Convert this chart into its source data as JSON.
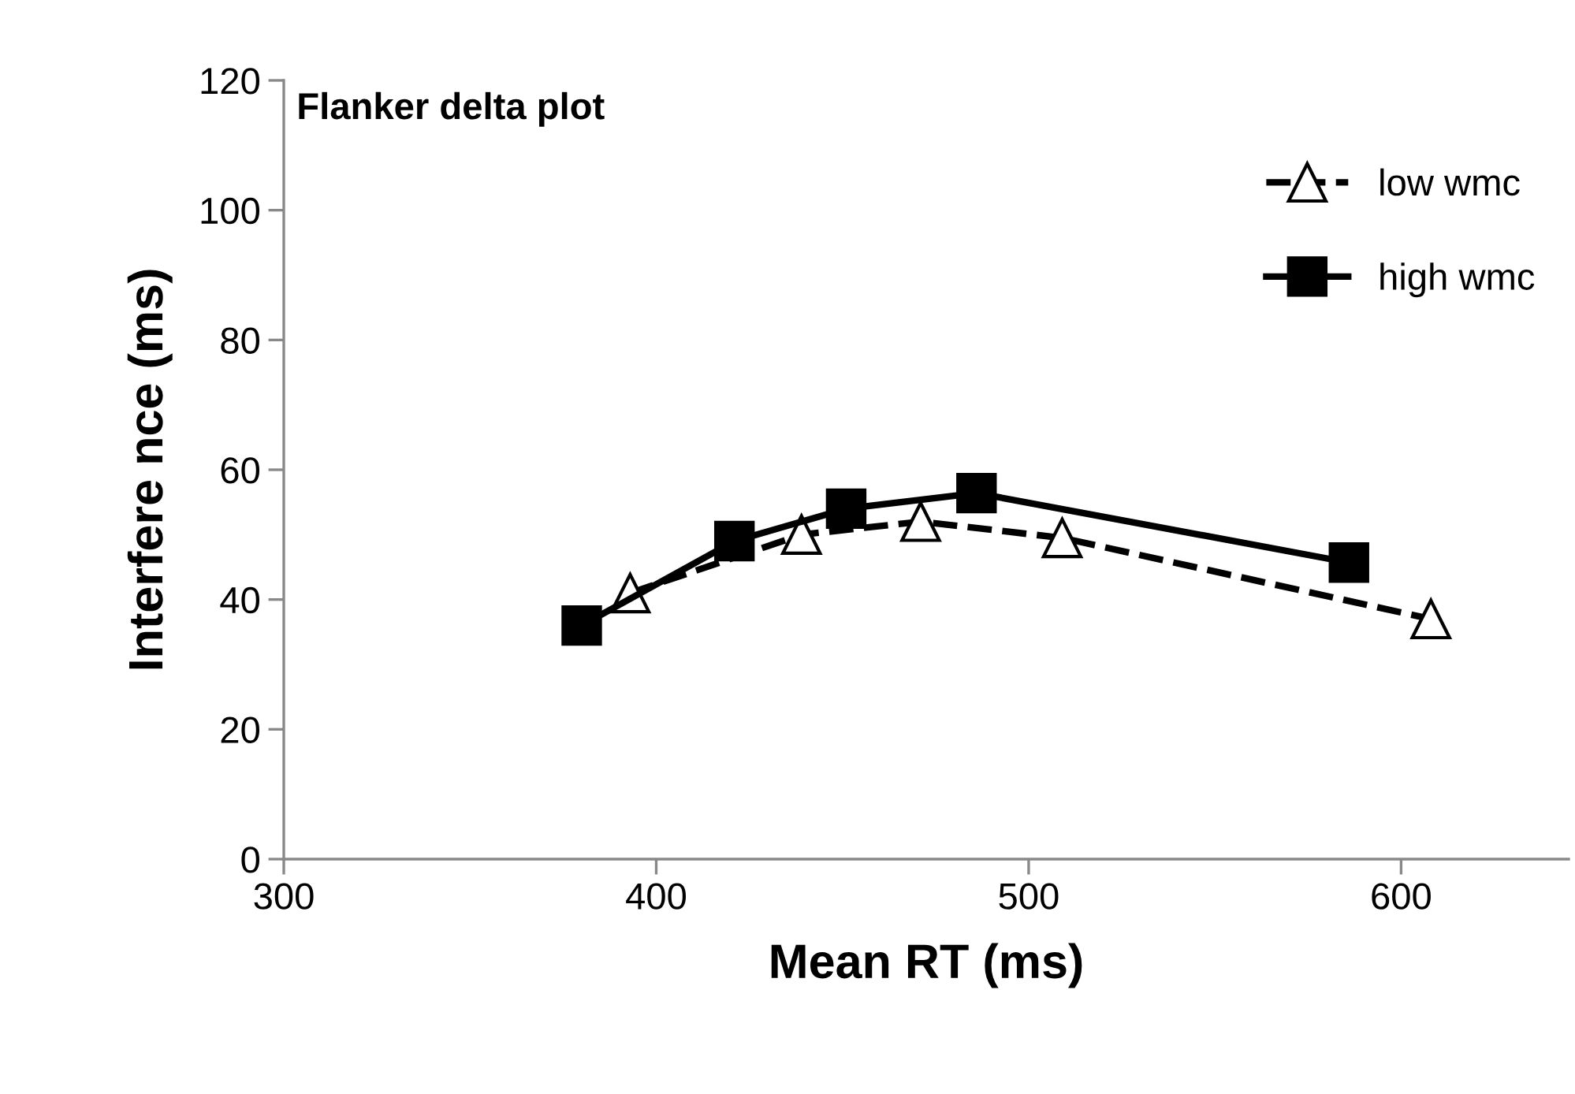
{
  "chart_data": {
    "type": "line",
    "title": "Flanker delta plot",
    "xlabel": "Mean RT (ms)",
    "ylabel": "Interfere nce (ms)",
    "xlim": [
      300,
      645
    ],
    "xticks": [
      300,
      400,
      500,
      600
    ],
    "ylim": [
      0,
      120
    ],
    "yticks": [
      0,
      20,
      40,
      60,
      80,
      100,
      120
    ],
    "grid": false,
    "legend": "top right",
    "series": [
      {
        "name": "low wmc",
        "color": "#000000",
        "marker": "triangle",
        "line_style": "dashed",
        "x": [
          393,
          439,
          471,
          509,
          608
        ],
        "values": [
          41,
          50,
          52,
          49.5,
          37
        ]
      },
      {
        "name": "high wmc",
        "color": "#000000",
        "marker": "square",
        "line_style": "solid",
        "x": [
          380,
          421,
          451,
          486,
          586
        ],
        "values": [
          36,
          49,
          54,
          56.4,
          45.7
        ]
      }
    ]
  }
}
